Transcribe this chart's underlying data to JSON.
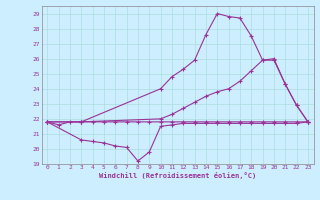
{
  "background_color": "#cceeff",
  "grid_color": "#aadddd",
  "line_color": "#993399",
  "xlabel": "Windchill (Refroidissement éolien,°C)",
  "ylim": [
    19,
    29.5
  ],
  "xlim": [
    -0.5,
    23.5
  ],
  "yticks": [
    19,
    20,
    21,
    22,
    23,
    24,
    25,
    26,
    27,
    28,
    29
  ],
  "xticks": [
    0,
    1,
    2,
    3,
    4,
    5,
    6,
    7,
    8,
    9,
    10,
    11,
    12,
    13,
    14,
    15,
    16,
    17,
    18,
    19,
    20,
    21,
    22,
    23
  ],
  "line1_x": [
    0,
    1,
    2,
    3,
    4,
    5,
    6,
    7,
    8,
    9,
    10,
    11,
    12,
    13,
    14,
    15,
    16,
    17,
    18,
    19,
    20,
    21,
    22,
    23
  ],
  "line1_y": [
    21.8,
    21.6,
    21.8,
    21.8,
    21.8,
    21.8,
    21.8,
    21.8,
    21.8,
    21.8,
    21.8,
    21.8,
    21.8,
    21.8,
    21.8,
    21.8,
    21.8,
    21.8,
    21.8,
    21.8,
    21.8,
    21.8,
    21.8,
    21.8
  ],
  "line2_x": [
    0,
    3,
    4,
    5,
    6,
    7,
    8,
    9,
    10,
    11,
    12,
    13,
    14,
    15,
    16,
    17,
    18,
    19,
    20,
    21,
    22,
    23
  ],
  "line2_y": [
    21.8,
    20.6,
    20.5,
    20.4,
    20.2,
    20.1,
    19.2,
    19.8,
    21.5,
    21.6,
    21.7,
    21.7,
    21.7,
    21.7,
    21.7,
    21.7,
    21.7,
    21.7,
    21.7,
    21.7,
    21.7,
    21.8
  ],
  "line3_x": [
    0,
    3,
    10,
    11,
    12,
    13,
    14,
    15,
    16,
    17,
    18,
    19,
    20,
    21,
    22,
    23
  ],
  "line3_y": [
    21.8,
    21.8,
    24.0,
    24.8,
    25.3,
    25.9,
    27.6,
    29.0,
    28.8,
    28.7,
    27.5,
    25.9,
    26.0,
    24.3,
    22.9,
    21.8
  ],
  "line4_x": [
    0,
    3,
    10,
    11,
    12,
    13,
    14,
    15,
    16,
    17,
    18,
    19,
    20,
    21,
    22,
    23
  ],
  "line4_y": [
    21.8,
    21.8,
    22.0,
    22.3,
    22.7,
    23.1,
    23.5,
    23.8,
    24.0,
    24.5,
    25.2,
    25.9,
    25.9,
    24.3,
    22.9,
    21.8
  ]
}
